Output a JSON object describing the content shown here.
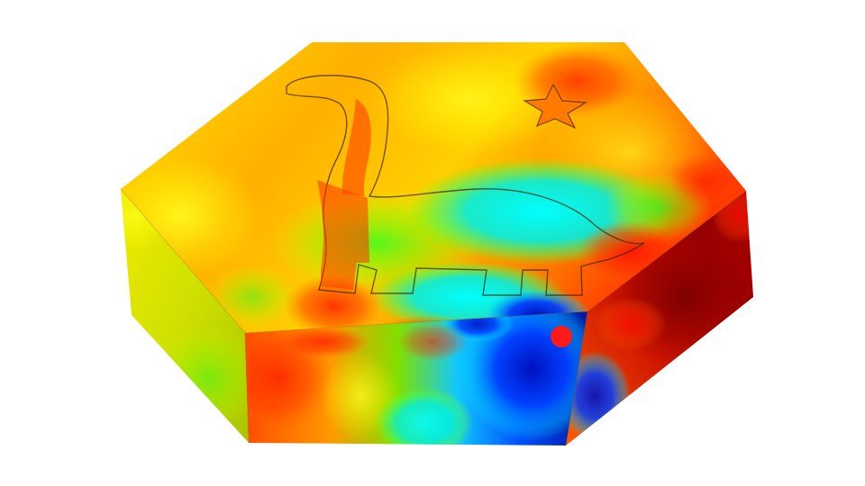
{
  "scene": {
    "background": "#ffffff",
    "object": "hexagonal-prism",
    "cutout_shapes": [
      "dinosaur",
      "star"
    ],
    "colormap": [
      "#00008b",
      "#0000ff",
      "#00ffff",
      "#00ff00",
      "#ffff00",
      "#ff8c00",
      "#ff0000",
      "#8b0000"
    ],
    "probe_color": "#ff1a1a"
  }
}
